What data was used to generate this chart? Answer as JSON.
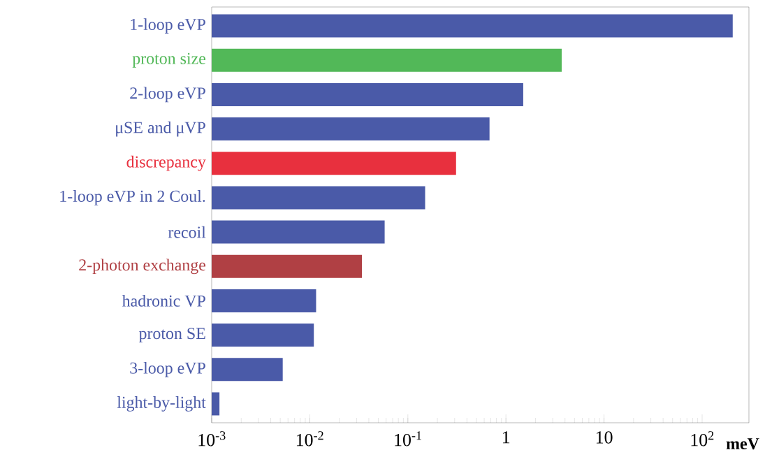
{
  "chart_data": {
    "type": "bar",
    "orientation": "horizontal",
    "log": "x",
    "xlabel": "meV",
    "categories": [
      "1-loop eVP",
      "proton size",
      "2-loop eVP",
      "μSE and μVP",
      "discrepancy",
      "1-loop eVP in 2 Coul.",
      "recoil",
      "2-photon exchange",
      "hadronic VP",
      "proton SE",
      "3-loop eVP",
      "light-by-light"
    ],
    "values": [
      205,
      3.7,
      1.5,
      0.68,
      0.31,
      0.15,
      0.058,
      0.034,
      0.0116,
      0.011,
      0.0053,
      0.0012
    ],
    "colors": [
      "#4a5aa8",
      "#52b858",
      "#4a5aa8",
      "#4a5aa8",
      "#e8303e",
      "#4a5aa8",
      "#4a5aa8",
      "#b04044",
      "#4a5aa8",
      "#4a5aa8",
      "#4a5aa8",
      "#4a5aa8"
    ],
    "xlim": [
      0.001,
      300
    ],
    "xticks": [
      {
        "value": 0.001,
        "label": "10$^{-3}$"
      },
      {
        "value": 0.01,
        "label": "10$^{-2}$"
      },
      {
        "value": 0.1,
        "label": "10$^{-1}$"
      },
      1,
      10,
      {
        "value": 100,
        "label": "10$^{2}$"
      }
    ]
  }
}
